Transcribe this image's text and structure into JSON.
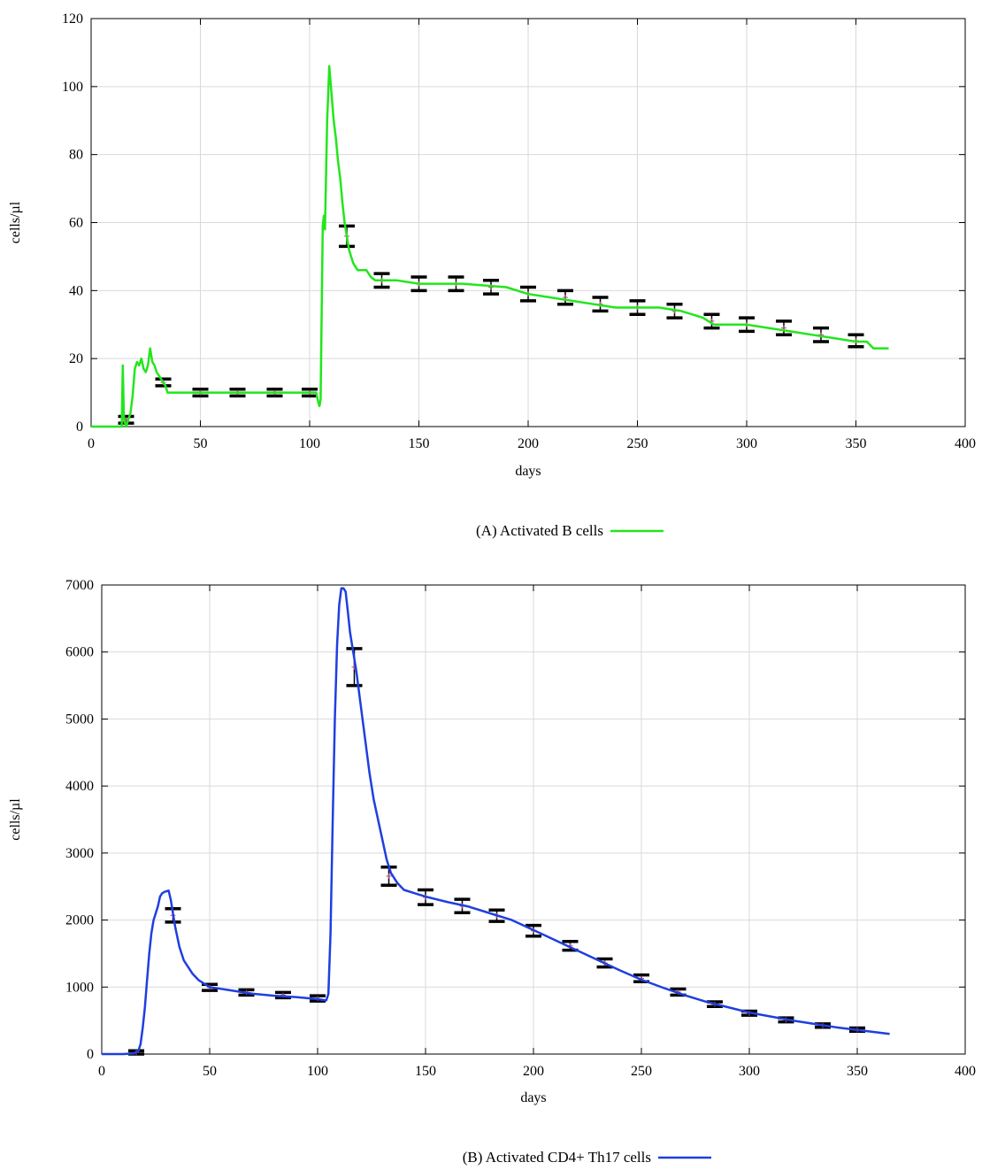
{
  "chart_data": [
    {
      "type": "line",
      "ylabel": "cells/µl",
      "xlabel": "days",
      "legend": {
        "label": "(A) Activated B cells",
        "placement": "bottom-center"
      },
      "xlim": [
        0,
        400
      ],
      "ylim": [
        0,
        120
      ],
      "x_ticks": [
        0,
        50,
        100,
        150,
        200,
        250,
        300,
        350,
        400
      ],
      "y_ticks": [
        0,
        20,
        40,
        60,
        80,
        100,
        120
      ],
      "grid": true,
      "color": "#22e61c",
      "series": [
        {
          "name": "(A) Activated B cells",
          "points": [
            [
              0,
              0
            ],
            [
              14,
              0
            ],
            [
              14.5,
              18
            ],
            [
              15,
              2
            ],
            [
              16,
              0
            ],
            [
              17,
              2
            ],
            [
              18,
              4
            ],
            [
              19,
              9
            ],
            [
              20,
              17
            ],
            [
              21,
              19
            ],
            [
              22,
              18
            ],
            [
              23,
              20
            ],
            [
              24,
              17
            ],
            [
              25,
              16
            ],
            [
              26,
              18
            ],
            [
              27,
              23
            ],
            [
              28,
              19
            ],
            [
              29,
              18
            ],
            [
              30,
              16
            ],
            [
              31,
              15
            ],
            [
              32,
              14
            ],
            [
              34,
              12
            ],
            [
              35,
              10
            ],
            [
              50,
              10
            ],
            [
              60,
              10
            ],
            [
              70,
              10
            ],
            [
              80,
              10
            ],
            [
              90,
              10
            ],
            [
              100,
              10
            ],
            [
              103,
              10
            ],
            [
              104,
              7
            ],
            [
              104.5,
              6
            ],
            [
              105,
              8
            ],
            [
              106,
              59
            ],
            [
              106.5,
              62
            ],
            [
              107,
              58
            ],
            [
              108,
              90
            ],
            [
              109,
              106
            ],
            [
              110,
              98
            ],
            [
              111,
              90
            ],
            [
              112,
              85
            ],
            [
              113,
              78
            ],
            [
              114,
              73
            ],
            [
              115,
              66
            ],
            [
              116,
              60
            ],
            [
              117,
              56
            ],
            [
              118,
              52
            ],
            [
              119,
              50
            ],
            [
              120,
              48
            ],
            [
              122,
              46
            ],
            [
              126,
              46
            ],
            [
              128,
              44
            ],
            [
              130,
              43
            ],
            [
              140,
              43
            ],
            [
              150,
              42
            ],
            [
              170,
              42
            ],
            [
              190,
              41
            ],
            [
              200,
              39
            ],
            [
              210,
              38
            ],
            [
              220,
              37
            ],
            [
              230,
              36
            ],
            [
              240,
              35
            ],
            [
              250,
              35
            ],
            [
              260,
              35
            ],
            [
              270,
              34
            ],
            [
              275,
              33
            ],
            [
              280,
              32
            ],
            [
              285,
              30
            ],
            [
              300,
              30
            ],
            [
              310,
              29
            ],
            [
              320,
              28
            ],
            [
              330,
              27
            ],
            [
              340,
              26
            ],
            [
              350,
              25
            ],
            [
              355,
              25
            ],
            [
              358,
              23
            ],
            [
              365,
              23
            ]
          ]
        }
      ],
      "error_bars": [
        [
          16,
          1,
          3
        ],
        [
          33,
          12,
          14
        ],
        [
          50,
          9,
          11
        ],
        [
          67,
          9,
          11
        ],
        [
          84,
          9,
          11
        ],
        [
          100,
          9,
          11
        ],
        [
          117,
          53,
          59
        ],
        [
          133,
          41,
          45
        ],
        [
          150,
          40,
          44
        ],
        [
          167,
          40,
          44
        ],
        [
          183,
          39,
          43
        ],
        [
          200,
          37,
          41
        ],
        [
          217,
          36,
          40
        ],
        [
          233,
          34,
          38
        ],
        [
          250,
          33,
          37
        ],
        [
          267,
          32,
          36
        ],
        [
          284,
          29,
          33
        ],
        [
          300,
          28,
          32
        ],
        [
          317,
          27,
          31
        ],
        [
          334,
          25,
          29
        ],
        [
          350,
          23.5,
          27
        ]
      ]
    },
    {
      "type": "line",
      "ylabel": "cells/µl",
      "xlabel": "days",
      "legend": {
        "label": "(B) Activated CD4+ Th17 cells",
        "placement": "bottom-center"
      },
      "xlim": [
        0,
        400
      ],
      "ylim": [
        0,
        7000
      ],
      "x_ticks": [
        0,
        50,
        100,
        150,
        200,
        250,
        300,
        350,
        400
      ],
      "y_ticks": [
        0,
        1000,
        2000,
        3000,
        4000,
        5000,
        6000,
        7000
      ],
      "grid": true,
      "color": "#1f3fe0",
      "series": [
        {
          "name": "(B) Activated CD4+ Th17 cells",
          "points": [
            [
              0,
              0
            ],
            [
              10,
              0
            ],
            [
              15,
              10
            ],
            [
              17,
              50
            ],
            [
              18,
              150
            ],
            [
              19,
              400
            ],
            [
              20,
              700
            ],
            [
              21,
              1100
            ],
            [
              22,
              1500
            ],
            [
              23,
              1800
            ],
            [
              24,
              2000
            ],
            [
              25,
              2100
            ],
            [
              26,
              2200
            ],
            [
              27,
              2350
            ],
            [
              28,
              2400
            ],
            [
              29,
              2420
            ],
            [
              30,
              2430
            ],
            [
              31,
              2440
            ],
            [
              32,
              2300
            ],
            [
              33,
              2100
            ],
            [
              34,
              1900
            ],
            [
              36,
              1600
            ],
            [
              38,
              1400
            ],
            [
              40,
              1300
            ],
            [
              42,
              1200
            ],
            [
              45,
              1100
            ],
            [
              50,
              1000
            ],
            [
              60,
              950
            ],
            [
              70,
              900
            ],
            [
              80,
              870
            ],
            [
              90,
              850
            ],
            [
              100,
              820
            ],
            [
              104,
              800
            ],
            [
              105,
              900
            ],
            [
              106,
              1800
            ],
            [
              107,
              3500
            ],
            [
              108,
              5000
            ],
            [
              109,
              6100
            ],
            [
              110,
              6700
            ],
            [
              111,
              6950
            ],
            [
              112,
              6950
            ],
            [
              113,
              6900
            ],
            [
              114,
              6600
            ],
            [
              115,
              6300
            ],
            [
              116,
              6100
            ],
            [
              117,
              5900
            ],
            [
              118,
              5700
            ],
            [
              120,
              5200
            ],
            [
              122,
              4700
            ],
            [
              124,
              4200
            ],
            [
              126,
              3800
            ],
            [
              128,
              3500
            ],
            [
              130,
              3200
            ],
            [
              132,
              2900
            ],
            [
              134,
              2700
            ],
            [
              137,
              2550
            ],
            [
              140,
              2450
            ],
            [
              145,
              2400
            ],
            [
              150,
              2350
            ],
            [
              160,
              2270
            ],
            [
              170,
              2200
            ],
            [
              180,
              2100
            ],
            [
              190,
              2000
            ],
            [
              200,
              1850
            ],
            [
              210,
              1700
            ],
            [
              220,
              1550
            ],
            [
              230,
              1400
            ],
            [
              240,
              1250
            ],
            [
              250,
              1110
            ],
            [
              260,
              990
            ],
            [
              270,
              880
            ],
            [
              280,
              780
            ],
            [
              290,
              700
            ],
            [
              300,
              620
            ],
            [
              310,
              560
            ],
            [
              320,
              500
            ],
            [
              330,
              450
            ],
            [
              340,
              400
            ],
            [
              350,
              360
            ],
            [
              360,
              320
            ],
            [
              365,
              300
            ]
          ]
        }
      ],
      "error_bars": [
        [
          16,
          0,
          50
        ],
        [
          33,
          1970,
          2170
        ],
        [
          50,
          950,
          1040
        ],
        [
          67,
          880,
          960
        ],
        [
          84,
          840,
          920
        ],
        [
          100,
          790,
          870
        ],
        [
          117,
          5500,
          6050
        ],
        [
          133,
          2520,
          2790
        ],
        [
          150,
          2230,
          2450
        ],
        [
          167,
          2110,
          2310
        ],
        [
          183,
          1980,
          2150
        ],
        [
          200,
          1760,
          1920
        ],
        [
          217,
          1550,
          1680
        ],
        [
          233,
          1300,
          1420
        ],
        [
          250,
          1080,
          1180
        ],
        [
          267,
          880,
          970
        ],
        [
          284,
          710,
          780
        ],
        [
          300,
          580,
          640
        ],
        [
          317,
          480,
          540
        ],
        [
          334,
          400,
          450
        ],
        [
          350,
          340,
          390
        ]
      ]
    }
  ]
}
